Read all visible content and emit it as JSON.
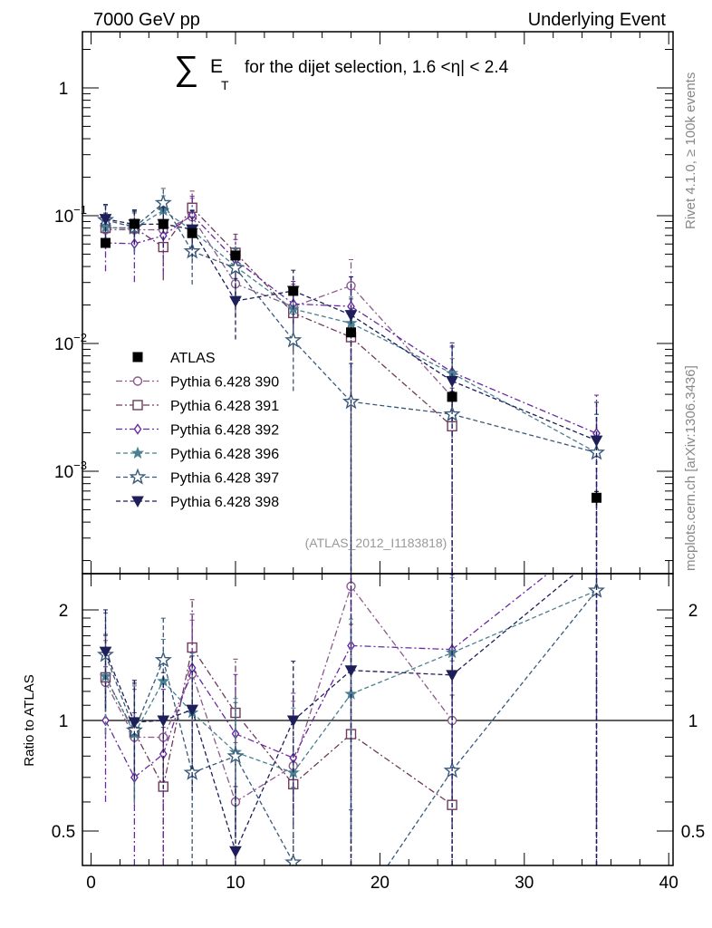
{
  "header": {
    "left": "7000 GeV pp",
    "right": "Underlying Event"
  },
  "side": {
    "rivet": "Rivet 4.1.0, ≥ 100k events",
    "mcplots": "mcplots.cern.ch [arXiv:1306.3436]"
  },
  "chart_data": {
    "type": "scatter",
    "title": {
      "sum_symbol": "∑",
      "main": "E",
      "sub": "T",
      "rest": "for the dijet selection, 1.6 <η| < 2.4"
    },
    "analysis": "(ATLAS_2012_I1183818)",
    "xlabel": "",
    "ylabel_ratio": "Ratio to ATLAS",
    "xlim": [
      -0.6,
      40.3
    ],
    "ylim": [
      0.000158,
      2.75
    ],
    "yscale": "log",
    "ratio_ylim": [
      0.403,
      2.51
    ],
    "x_ticks": [
      "0",
      "10",
      "20",
      "30",
      "40"
    ],
    "y_ticks": [
      {
        "v": 1,
        "base": "1",
        "exp": ""
      },
      {
        "v": 0.1,
        "base": "10",
        "exp": "−1"
      },
      {
        "v": 0.01,
        "base": "10",
        "exp": "−2"
      },
      {
        "v": 0.001,
        "base": "10",
        "exp": "−3"
      }
    ],
    "ratio_ticks": [
      "2",
      "1",
      "0.5"
    ],
    "legend_position": "middle-left",
    "x": [
      1,
      3,
      5,
      7,
      10,
      14,
      18,
      25,
      35
    ],
    "reference": {
      "name": "ATLAS",
      "color": "#000000",
      "marker": "filled-square",
      "values": [
        0.0612,
        0.0863,
        0.086,
        0.073,
        0.0488,
        0.0258,
        0.0122,
        0.00382,
        0.00062
      ],
      "rel_err": [
        0.05,
        0.05,
        0.05,
        0.05,
        0.05,
        0.06,
        0.07,
        0.1,
        0.12
      ]
    },
    "series": [
      {
        "name": "Pythia 6.428 390",
        "color": "#8a5a8a",
        "marker": "open-circle",
        "dash": "dashdot",
        "values": [
          0.0777,
          0.0777,
          0.0774,
          0.0978,
          0.0293,
          0.0194,
          0.0283,
          0.00382,
          null
        ],
        "rel_err": [
          0.3,
          0.35,
          0.35,
          0.4,
          0.45,
          0.5,
          0.6,
          0.99,
          null
        ]
      },
      {
        "name": "Pythia 6.428 391",
        "color": "#6e3b5a",
        "marker": "open-square",
        "dash": "dashdot",
        "values": [
          0.0802,
          0.0803,
          0.0568,
          0.1153,
          0.0512,
          0.0173,
          0.0112,
          0.00225,
          null
        ],
        "rel_err": [
          0.3,
          0.35,
          0.45,
          0.35,
          0.4,
          0.5,
          0.99,
          0.99,
          null
        ]
      },
      {
        "name": "Pythia 6.428 392",
        "color": "#6a2aa0",
        "marker": "open-diamond",
        "dash": "dashdot",
        "values": [
          0.0612,
          0.0604,
          0.0697,
          0.1015,
          0.0449,
          0.0204,
          0.0195,
          0.00596,
          0.00198
        ],
        "rel_err": [
          0.4,
          0.5,
          0.5,
          0.4,
          0.45,
          0.5,
          0.7,
          0.6,
          0.99
        ]
      },
      {
        "name": "Pythia 6.428 396",
        "color": "#4a8090",
        "marker": "filled-star",
        "dash": "dashed",
        "values": [
          0.0808,
          0.0794,
          0.11,
          0.0767,
          0.04,
          0.0186,
          0.0144,
          0.00584,
          0.0014
        ],
        "rel_err": [
          0.3,
          0.35,
          0.3,
          0.45,
          0.4,
          0.5,
          0.6,
          0.6,
          0.99
        ]
      },
      {
        "name": "Pythia 6.428 397",
        "color": "#3a5a7a",
        "marker": "open-star",
        "dash": "dashed",
        "values": [
          0.0924,
          0.0811,
          0.1256,
          0.0526,
          0.039,
          0.0106,
          0.0035,
          0.00279,
          0.0014
        ],
        "rel_err": [
          0.3,
          0.35,
          0.3,
          0.45,
          0.4,
          0.6,
          0.99,
          0.99,
          0.99
        ]
      },
      {
        "name": "Pythia 6.428 398",
        "color": "#1e1e5a",
        "marker": "filled-triangle-down",
        "dash": "dashed",
        "values": [
          0.0942,
          0.0854,
          0.086,
          0.0781,
          0.0215,
          0.0258,
          0.0167,
          0.00508,
          0.00174
        ],
        "rel_err": [
          0.3,
          0.3,
          0.35,
          0.4,
          0.5,
          0.45,
          0.99,
          0.99,
          0.99
        ]
      }
    ]
  }
}
